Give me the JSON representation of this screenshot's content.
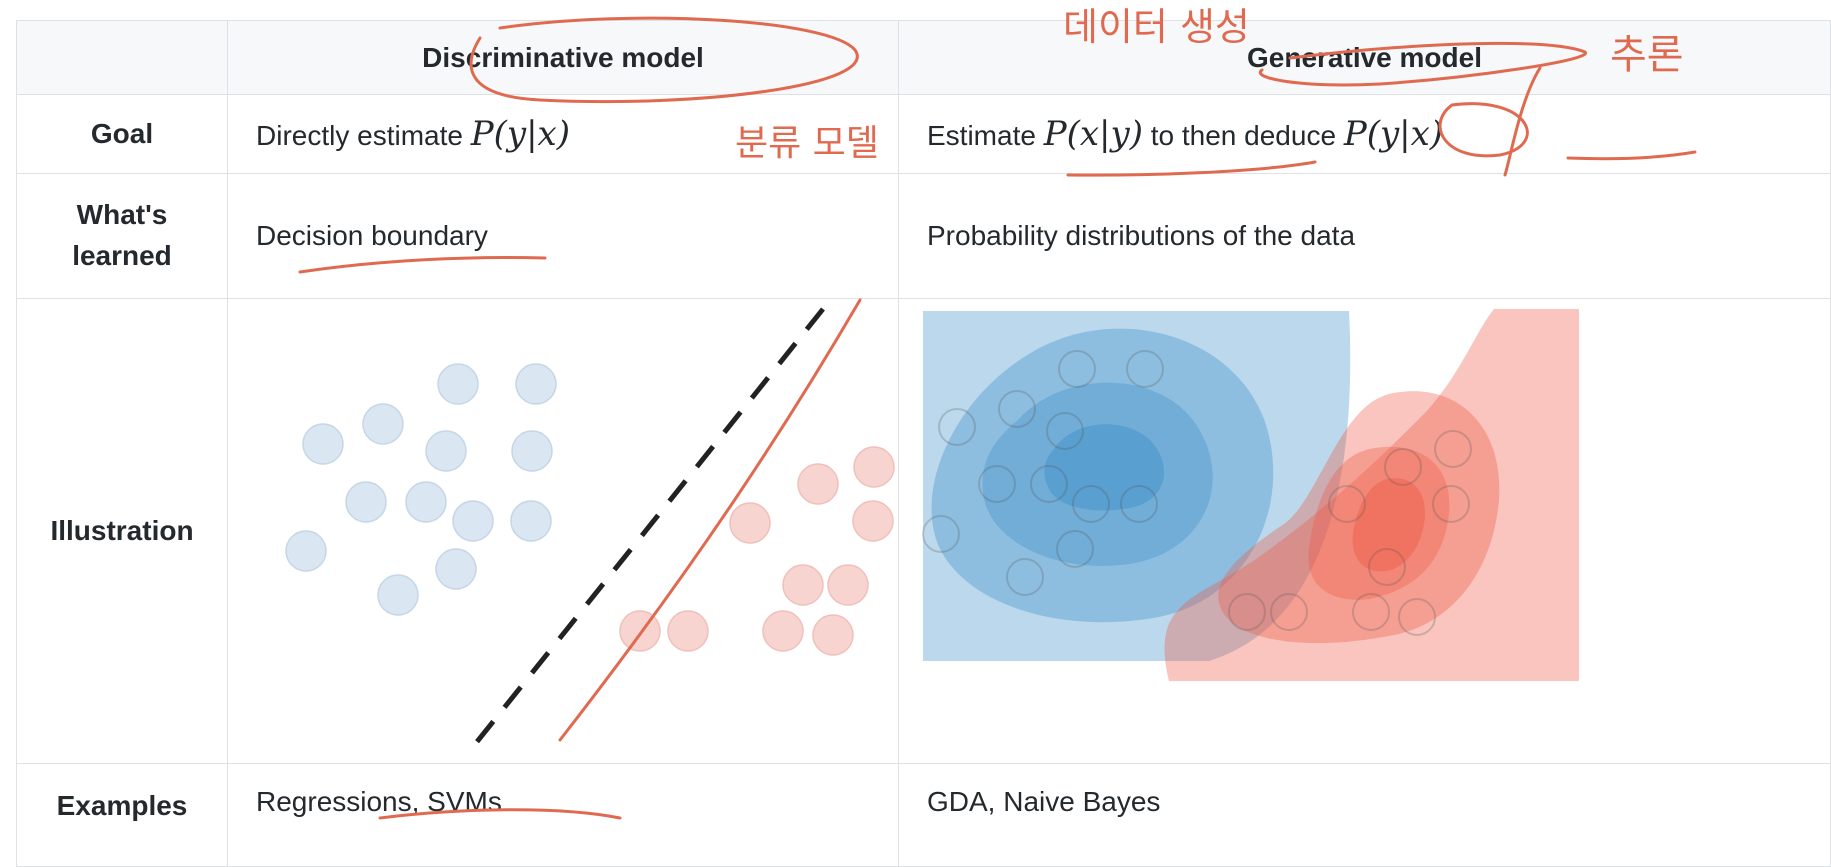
{
  "table": {
    "header": {
      "corner": "",
      "discriminative": "Discriminative model",
      "generative": "Generative model"
    },
    "rows": {
      "goal": {
        "label": "Goal",
        "discriminative": {
          "prefix": "Directly estimate",
          "math": "P(y|x)"
        },
        "generative": {
          "prefix": "Estimate",
          "math1": "P(x|y)",
          "middle": "to then deduce",
          "math2": "P(y|x)"
        }
      },
      "learned": {
        "label": "What's learned",
        "discriminative": "Decision boundary",
        "generative": "Probability distributions of the data"
      },
      "illustration": {
        "label": "Illustration"
      },
      "examples": {
        "label": "Examples",
        "discriminative": "Regressions, SVMs",
        "generative": "GDA, Naive Bayes"
      }
    }
  },
  "annotations": {
    "data_generation": "데이터 생성",
    "inference": "추론",
    "classification_model": "분류 모델"
  },
  "colors": {
    "blue_point": "#dae6f1",
    "red_point": "#f8d4d0",
    "blue_density": "#3c8ec8",
    "red_density": "#ee5a45",
    "annotation_ink": "#e06a4f"
  }
}
